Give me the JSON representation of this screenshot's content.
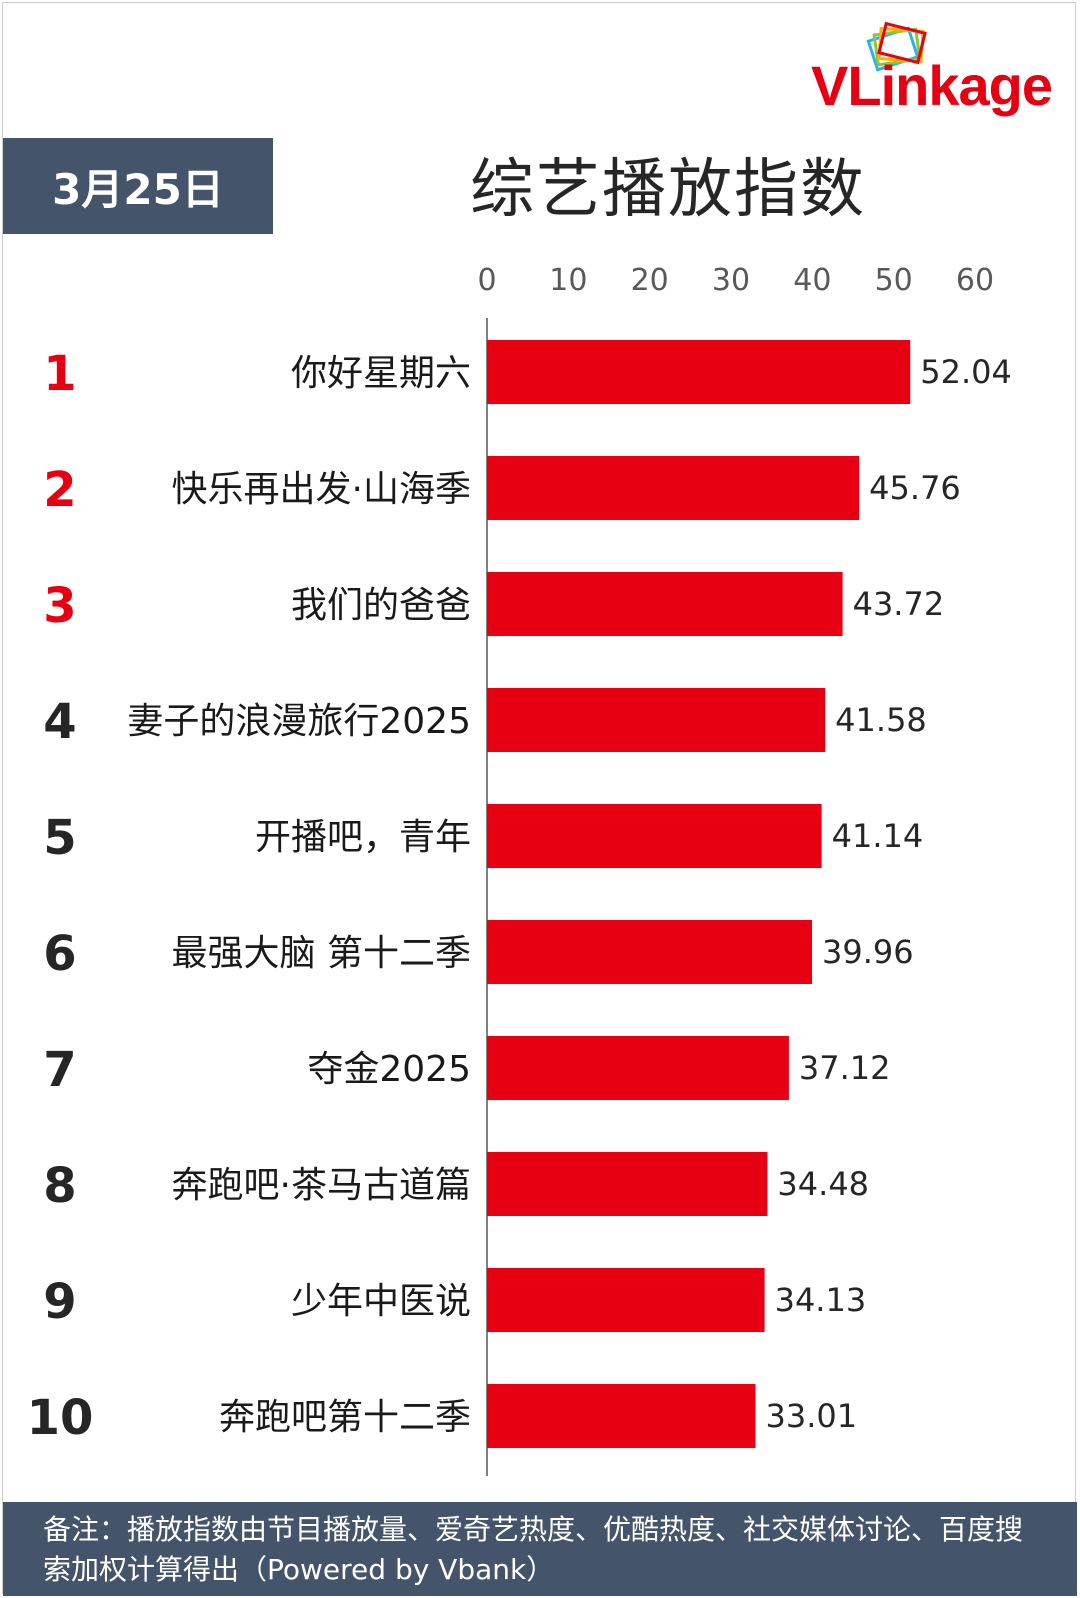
{
  "brand": {
    "logo_text_a": "VLink",
    "logo_text_b": "age",
    "accent": "#e60012"
  },
  "header": {
    "date": "3月25日",
    "title": "综艺播放指数"
  },
  "footer": {
    "note": "备注：播放指数由节目播放量、爱奇艺热度、优酷热度、社交媒体讨论、百度搜索加权计算得出（Powered by Vbank）"
  },
  "colors": {
    "bar": "#e60012",
    "rank_top": "#e60012",
    "rank_other": "#262626",
    "header_bg": "#44546a"
  },
  "chart_data": {
    "type": "bar",
    "orientation": "horizontal",
    "title": "综艺播放指数",
    "xlim": [
      0,
      60
    ],
    "ticks": [
      0,
      10,
      20,
      30,
      40,
      50,
      60
    ],
    "ranks": [
      "1",
      "2",
      "3",
      "4",
      "5",
      "6",
      "7",
      "8",
      "9",
      "10"
    ],
    "categories": [
      "你好星期六",
      "快乐再出发·山海季",
      "我们的爸爸",
      "妻子的浪漫旅行2025",
      "开播吧，青年",
      "最强大脑 第十二季",
      "夺金2025",
      "奔跑吧·茶马古道篇",
      "少年中医说",
      "奔跑吧第十二季"
    ],
    "values": [
      52.04,
      45.76,
      43.72,
      41.58,
      41.14,
      39.96,
      37.12,
      34.48,
      34.13,
      33.01
    ],
    "value_labels": [
      "52.04",
      "45.76",
      "43.72",
      "41.58",
      "41.14",
      "39.96",
      "37.12",
      "34.48",
      "34.13",
      "33.01"
    ],
    "grid": false,
    "legend": "none"
  }
}
